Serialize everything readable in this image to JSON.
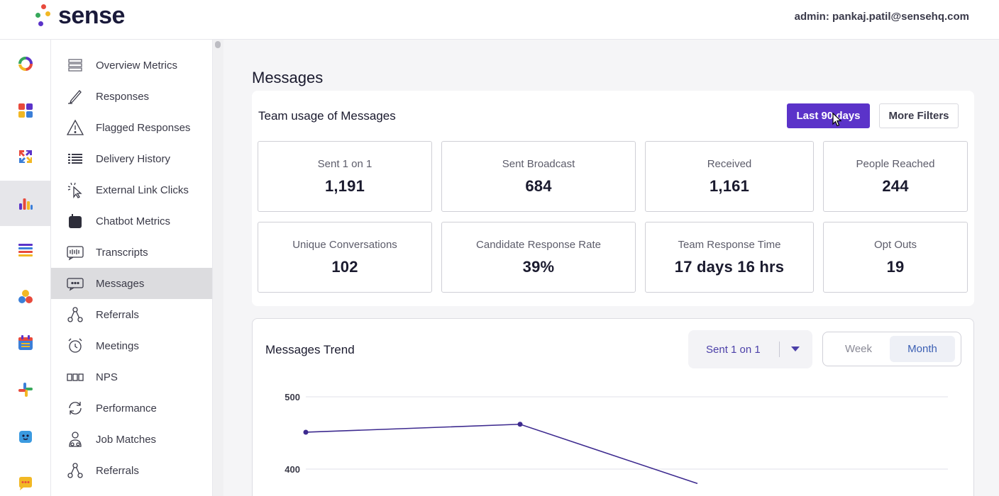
{
  "brand": {
    "name": "sense"
  },
  "header": {
    "admin_text": "admin: pankaj.patil@sensehq.com"
  },
  "rail": {
    "items": [
      {
        "icon": "donut-logo-icon"
      },
      {
        "icon": "dashboard-grid-icon"
      },
      {
        "icon": "arrows-exchange-icon"
      },
      {
        "icon": "bar-chart-icon",
        "active": true
      },
      {
        "icon": "list-icon"
      },
      {
        "icon": "people-circles-icon"
      },
      {
        "icon": "calendar-icon"
      },
      {
        "icon": "slack-icon"
      },
      {
        "icon": "chatbot-icon"
      },
      {
        "icon": "chat-bubble-icon"
      }
    ]
  },
  "subnav": {
    "items": [
      {
        "label": "Overview Metrics",
        "icon": "overview-icon"
      },
      {
        "label": "Responses",
        "icon": "pencil-icon"
      },
      {
        "label": "Flagged Responses",
        "icon": "warning-icon"
      },
      {
        "label": "Delivery History",
        "icon": "list-lines-icon"
      },
      {
        "label": "External Link Clicks",
        "icon": "cursor-click-icon"
      },
      {
        "label": "Chatbot Metrics",
        "icon": "chatbot-box-icon"
      },
      {
        "label": "Transcripts",
        "icon": "transcript-icon"
      },
      {
        "label": "Messages",
        "icon": "message-icon",
        "active": true
      },
      {
        "label": "Referrals",
        "icon": "referral-icon"
      },
      {
        "label": "Meetings",
        "icon": "alarm-clock-icon"
      },
      {
        "label": "NPS",
        "icon": "nps-icon"
      },
      {
        "label": "Performance",
        "icon": "refresh-icon"
      },
      {
        "label": "Job Matches",
        "icon": "job-matches-icon"
      },
      {
        "label": "Referrals",
        "icon": "referral-icon"
      }
    ]
  },
  "main": {
    "title": "Messages",
    "usage": {
      "title": "Team usage of Messages",
      "filter_label": "Last 90 days",
      "more_filters_label": "More Filters",
      "metrics": [
        {
          "label": "Sent 1 on 1",
          "value": "1,191"
        },
        {
          "label": "Sent Broadcast",
          "value": "684"
        },
        {
          "label": "Received",
          "value": "1,161"
        },
        {
          "label": "People Reached",
          "value": "244"
        },
        {
          "label": "Unique Conversations",
          "value": "102"
        },
        {
          "label": "Candidate Response Rate",
          "value": "39%"
        },
        {
          "label": "Team Response Time",
          "value": "17 days 16 hrs"
        },
        {
          "label": "Opt Outs",
          "value": "19"
        }
      ]
    },
    "trend": {
      "title": "Messages Trend",
      "metric_select": "Sent 1 on 1",
      "toggle": {
        "week": "Week",
        "month": "Month",
        "selected": "month"
      }
    }
  },
  "colors": {
    "accent": "#5b33c9",
    "line": "#3d2a8f"
  },
  "chart_data": {
    "type": "line",
    "title": "",
    "xlabel": "",
    "ylabel": "",
    "yticks": [
      400,
      500
    ],
    "ylim": [
      380,
      500
    ],
    "series": [
      {
        "values": [
          451,
          462,
          380
        ]
      }
    ],
    "grid": true
  }
}
